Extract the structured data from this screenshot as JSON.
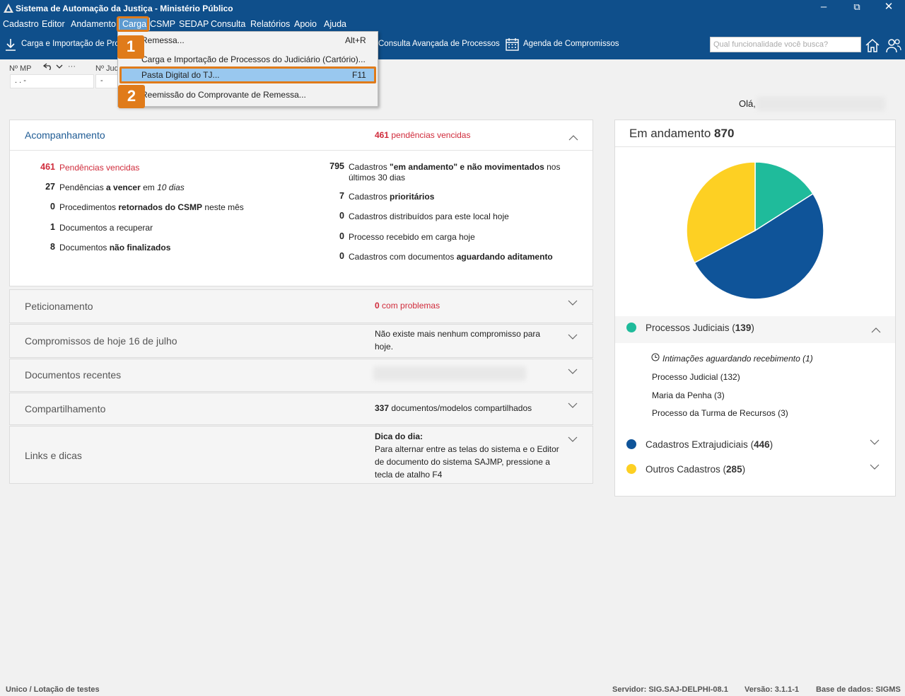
{
  "window": {
    "title": "Sistema de Automação da Justiça - Ministério Público",
    "minimize_icon": "minimize-icon",
    "restore_icon": "restore-icon",
    "close_icon": "close-icon"
  },
  "menubar": {
    "items": [
      "Cadastro",
      "Editor",
      "Andamento",
      "Carga",
      "CSMP",
      "SEDAP",
      "Consulta",
      "Relatórios",
      "Apoio",
      "Ajuda"
    ],
    "active": "Carga"
  },
  "toolbar": {
    "carga_label": "Carga e Importação de Pro",
    "consulta_label": "Consulta Avançada de Processos",
    "agenda_label": "Agenda de Compromissos",
    "search_placeholder": "Qual funcionalidade você busca?"
  },
  "fields": {
    "mp_label": "Nº MP",
    "mp_value": ". .   -",
    "jud_label": "Nº Jud",
    "jud_value": "-",
    "history_more": "···"
  },
  "dropdown": {
    "items": [
      {
        "label": "Remessa...",
        "shortcut": "Alt+R"
      },
      {
        "label": "Carga e Importação de Processos do Judiciário (Cartório)...",
        "shortcut": ""
      },
      {
        "label": "Pasta Digital do TJ...",
        "shortcut": "F11"
      },
      {
        "label": "Reemissão do Comprovante de Remessa...",
        "shortcut": ""
      }
    ],
    "selected_index": 2
  },
  "callouts": [
    "1",
    "2"
  ],
  "greeting": "Olá,",
  "acompanhamento": {
    "title": "Acompanhamento",
    "summary_num": "461",
    "summary_text": "pendências vencidas",
    "left": [
      {
        "num": "461",
        "pre": "Pendências ",
        "bold": "vencidas",
        "post": "",
        "italic": ""
      },
      {
        "num": "27",
        "pre": "Pendências ",
        "bold": "a vencer",
        "post": " em ",
        "italic": "10 dias"
      },
      {
        "num": "0",
        "pre": "Procedimentos ",
        "bold": "retornados do CSMP",
        "post": " neste mês",
        "italic": ""
      },
      {
        "num": "1",
        "pre": "Documentos a recuperar",
        "bold": "",
        "post": "",
        "italic": ""
      },
      {
        "num": "8",
        "pre": "Documentos ",
        "bold": "não finalizados",
        "post": "",
        "italic": ""
      }
    ],
    "right": [
      {
        "num": "795",
        "pre": "Cadastros ",
        "bold": "\"em andamento\" e não movimentados",
        "post": " nos",
        "line2": "últimos 30 dias"
      },
      {
        "num": "7",
        "pre": "Cadastros ",
        "bold": "prioritários",
        "post": "",
        "line2": ""
      },
      {
        "num": "0",
        "pre": "Cadastros distribuídos para este local hoje",
        "bold": "",
        "post": "",
        "line2": ""
      },
      {
        "num": "0",
        "pre": "Processo recebido em carga hoje",
        "bold": "",
        "post": "",
        "line2": ""
      },
      {
        "num": "0",
        "pre": "Cadastros com documentos ",
        "bold": "aguardando aditamento",
        "post": "",
        "line2": ""
      }
    ]
  },
  "sections": {
    "peticionamento": {
      "title": "Peticionamento",
      "num": "0",
      "text": "com problemas"
    },
    "compromissos": {
      "title": "Compromissos de hoje 16 de julho",
      "line1": "Não existe mais nenhum compromisso para",
      "line2": "hoje."
    },
    "documentos": {
      "title": "Documentos recentes"
    },
    "compartilhamento": {
      "title": "Compartilhamento",
      "num": "337",
      "text": "documentos/modelos compartilhados"
    },
    "links": {
      "title": "Links e dicas",
      "heading": "Dica do dia:",
      "lines": [
        "Para alternar entre as telas do sistema e o Editor",
        "de documento do sistema SAJMP, pressione a",
        "tecla de atalho F4"
      ]
    }
  },
  "andamento": {
    "title": "Em andamento",
    "total": "870",
    "chart_data": {
      "type": "pie",
      "categories": [
        "Processos Judiciais",
        "Cadastros Extrajudiciais",
        "Outros Cadastros"
      ],
      "values": [
        139,
        446,
        285
      ],
      "colors": [
        "#1fbb9b",
        "#0f5499",
        "#fdd023"
      ]
    },
    "groups": [
      {
        "name": "Processos Judiciais",
        "count": "139",
        "color": "#1fbb9b"
      },
      {
        "name": "Cadastros Extrajudiciais",
        "count": "446",
        "color": "#0f5499"
      },
      {
        "name": "Outros Cadastros",
        "count": "285",
        "color": "#fdd023"
      }
    ],
    "sub_items": [
      "Intimações aguardando recebimento (1)",
      "Processo Judicial (132)",
      "Maria da Penha (3)",
      "Processo da Turma de Recursos (3)"
    ]
  },
  "statusbar": {
    "left": "Unico / Lotação de testes",
    "server": "Servidor: SIG.SAJ-DELPHI-08.1",
    "version": "Versão: 3.1.1-1",
    "db": "Base de dados: SIGMS"
  }
}
